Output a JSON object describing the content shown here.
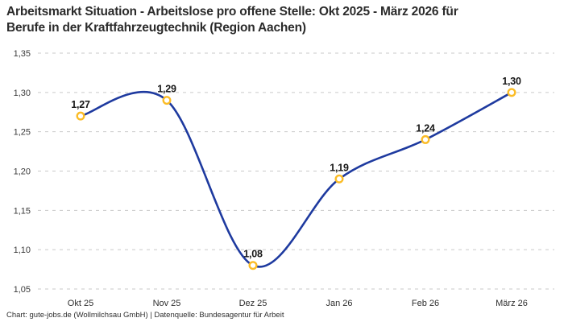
{
  "header": {
    "title": "Arbeitsmarkt Situation - Arbeitslose pro offene Stelle: Okt 2025 - März 2026 für Berufe in der Kraftfahrzeugtechnik (Region Aachen)",
    "title_lines": [
      "Arbeitsmarkt Situation - Arbeitslose pro offene Stelle: Okt 2025 - März 2026 für",
      "Berufe in der Kraftfahrzeugtechnik (Region Aachen)"
    ]
  },
  "footer": {
    "credit": "Chart: gute-jobs.de (Wollmilchsau GmbH) | Datenquelle: Bundesagentur für Arbeit"
  },
  "chart_data": {
    "type": "line",
    "title": "Arbeitsmarkt Situation - Arbeitslose pro offene Stelle: Okt 2025 - März 2026 für Berufe in der Kraftfahrzeugtechnik (Region Aachen)",
    "categories": [
      "Okt 25",
      "Nov 25",
      "Dez 25",
      "Jan 26",
      "Feb 26",
      "März 26"
    ],
    "values": [
      1.27,
      1.29,
      1.08,
      1.19,
      1.24,
      1.3
    ],
    "value_labels": [
      "1,27",
      "1,29",
      "1,08",
      "1,19",
      "1,24",
      "1,30"
    ],
    "xlabel": "",
    "ylabel": "",
    "ylim": [
      1.05,
      1.35
    ],
    "yticks": [
      1.05,
      1.1,
      1.15,
      1.2,
      1.25,
      1.3,
      1.35
    ],
    "ytick_labels": [
      "1,05",
      "1,10",
      "1,15",
      "1,20",
      "1,25",
      "1,30",
      "1,35"
    ],
    "decimal_separator": ",",
    "grid": "horizontal-dashed",
    "legend": "none",
    "line_style": "smooth-spline",
    "marker_style": "open-circle",
    "colors": {
      "line": "#1e3a9f",
      "marker_ring": "#fbbc26",
      "marker_fill": "#ffffff",
      "gridline": "#c9c9c9",
      "title_text": "#2b2b2b",
      "tick_text": "#3a3a3a",
      "point_label_text": "#161616",
      "background": "#ffffff"
    }
  }
}
